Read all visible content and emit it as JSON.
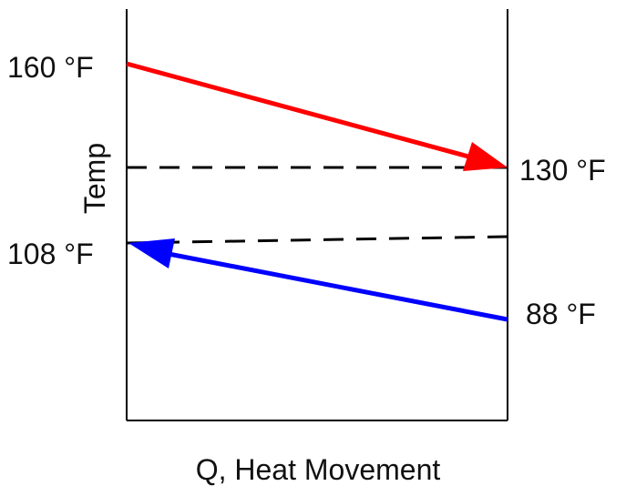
{
  "axis": {
    "y_label": "Temp",
    "x_label": "Q, Heat Movement"
  },
  "hot_stream": {
    "inlet_label": "160 °F",
    "outlet_label": "130 °F",
    "color": "#ff0000"
  },
  "cold_stream": {
    "inlet_label": "88 °F",
    "outlet_label": "108 °F",
    "color": "#0000ff"
  },
  "colors": {
    "axis": "#000000",
    "dashed": "#000000"
  }
}
